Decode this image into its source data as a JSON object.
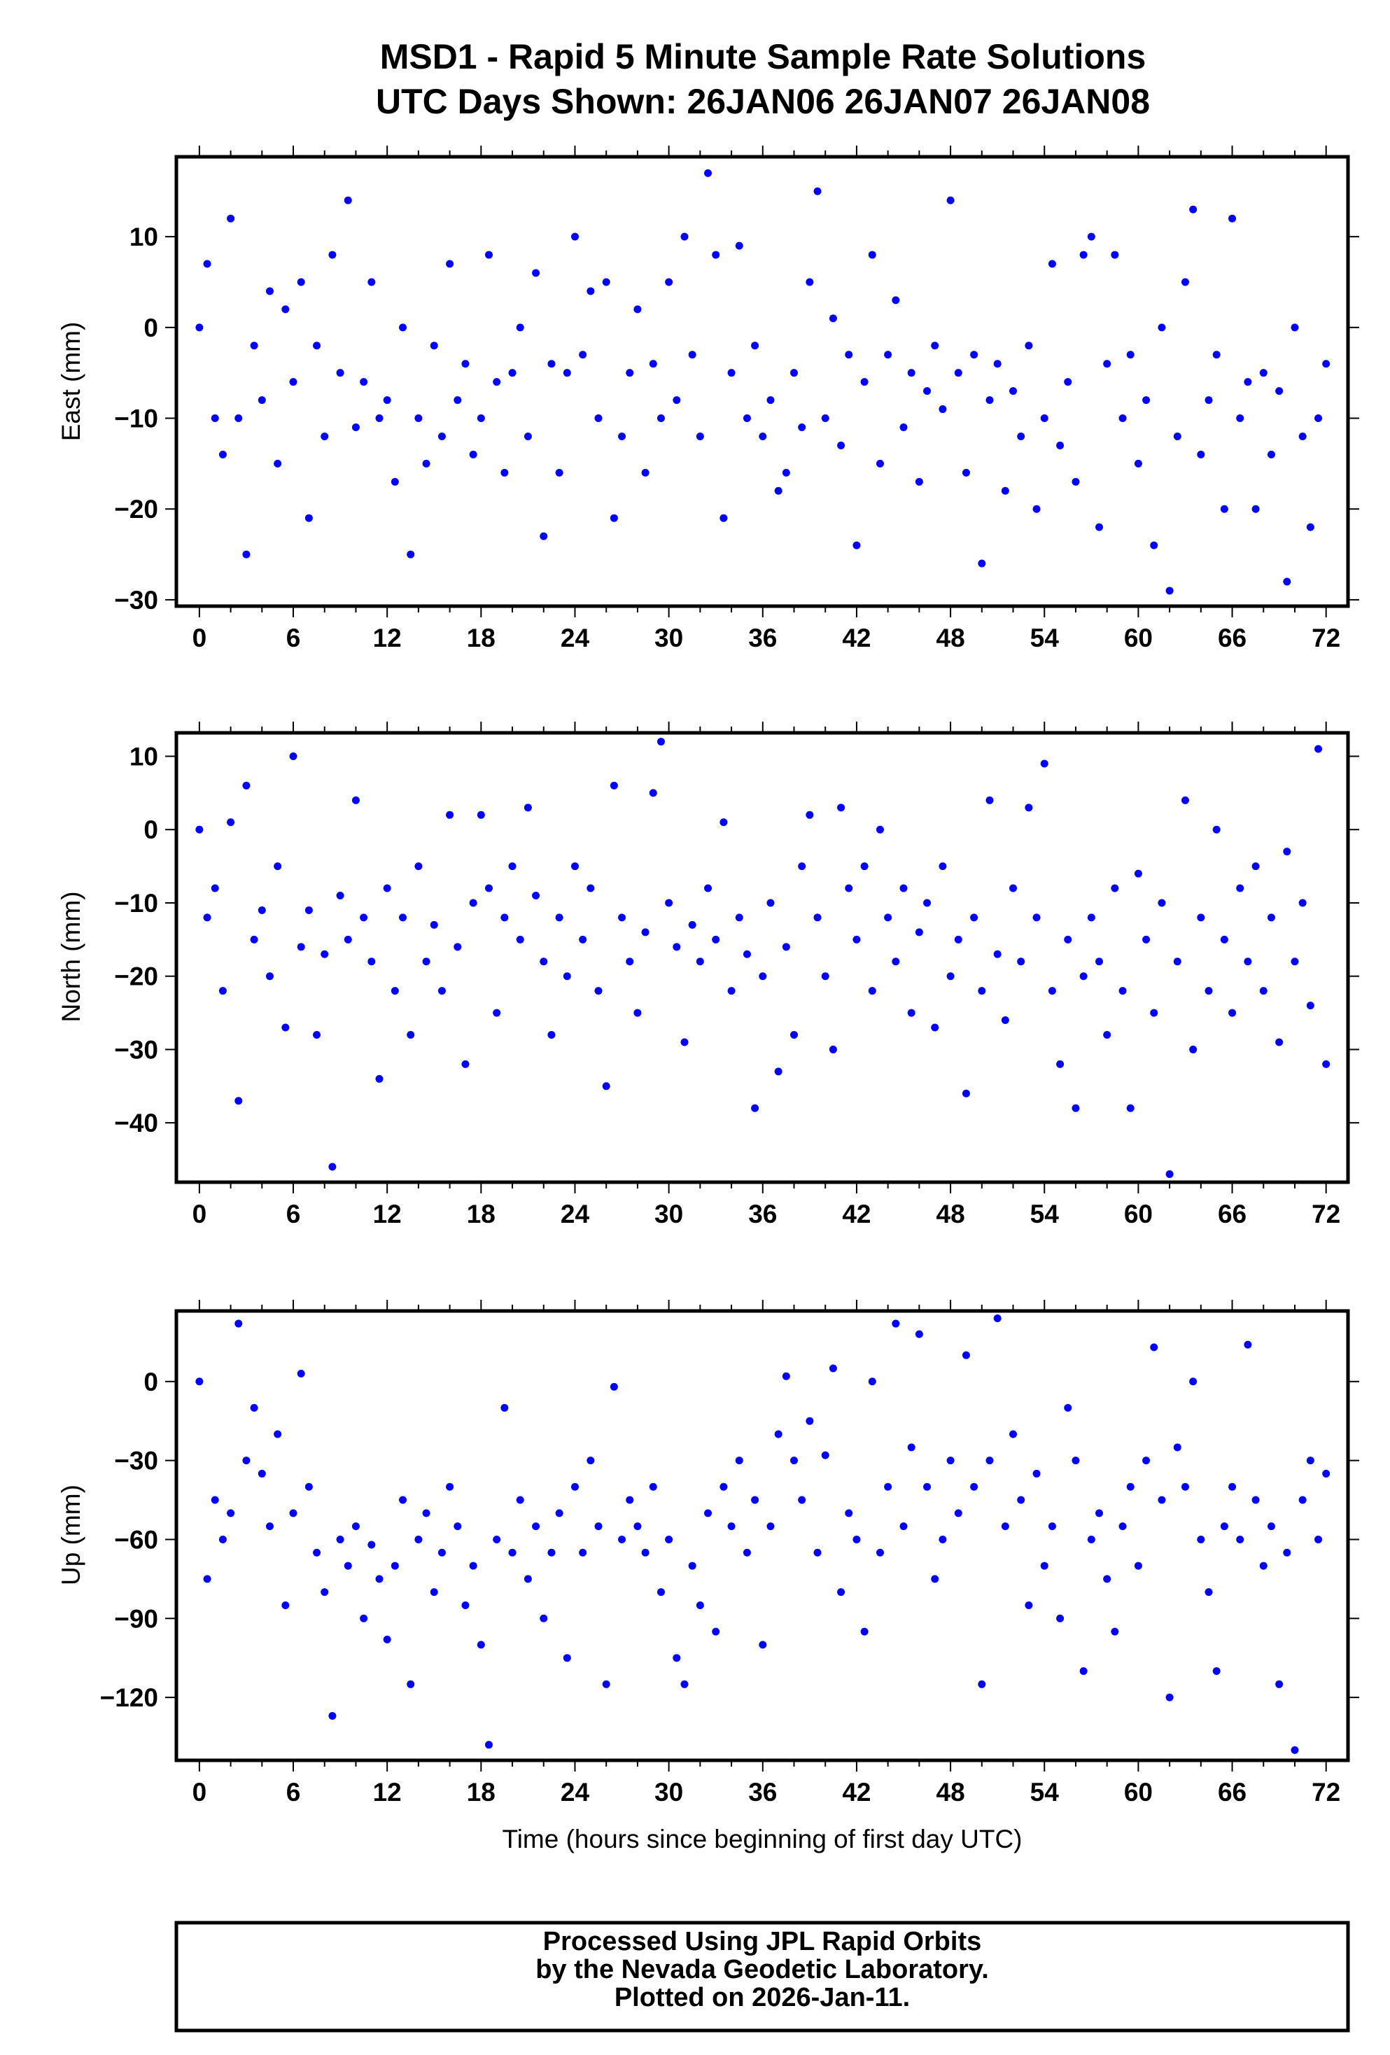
{
  "chart_data": {
    "type": "scatter",
    "title": "MSD1 - Rapid 5 Minute Sample Rate Solutions",
    "subtitle": "UTC Days Shown:  26JAN06 26JAN07 26JAN08",
    "xlabel": "Time (hours since beginning of first day UTC)",
    "xlim": [
      -1.47,
      73.4
    ],
    "xticks": [
      "0",
      "6",
      "12",
      "18",
      "24",
      "30",
      "36",
      "42",
      "48",
      "54",
      "60",
      "66",
      "72"
    ],
    "point_color": "#0000ff",
    "panels": [
      {
        "name": "east",
        "ylabel": "East (mm)",
        "ylim": [
          -30.7,
          18.8
        ],
        "yticks": [
          10,
          0,
          -10,
          -20,
          -30
        ],
        "ytick_labels": [
          "10",
          "0",
          "−10",
          "−20",
          "−30"
        ],
        "x_step": 0.5,
        "values": [
          0,
          7,
          -10,
          -14,
          12,
          -10,
          -25,
          -2,
          -8,
          4,
          -15,
          2,
          -6,
          5,
          -21,
          -2,
          -12,
          8,
          -5,
          14,
          -11,
          -6,
          5,
          -10,
          -8,
          -17,
          0,
          -25,
          -10,
          -15,
          -2,
          -12,
          7,
          -8,
          -4,
          -14,
          -10,
          8,
          -6,
          -16,
          -5,
          0,
          -12,
          6,
          -23,
          -4,
          -16,
          -5,
          10,
          -3,
          4,
          -10,
          5,
          -21,
          -12,
          -5,
          2,
          -16,
          -4,
          -10,
          5,
          -8,
          10,
          -3,
          -12,
          17,
          8,
          -21,
          -5,
          9,
          -10,
          -2,
          -12,
          -8,
          -18,
          -16,
          -5,
          -11,
          5,
          15,
          -10,
          1,
          -13,
          -3,
          -24,
          -6,
          8,
          -15,
          -3,
          3,
          -11,
          -5,
          -17,
          -7,
          -2,
          -9,
          14,
          -5,
          -16,
          -3,
          -26,
          -8,
          -4,
          -18,
          -7,
          -12,
          -2,
          -20,
          -10,
          7,
          -13,
          -6,
          -17,
          8,
          10,
          -22,
          -4,
          8,
          -10,
          -3,
          -15,
          -8,
          -24,
          0,
          -29,
          -12,
          5,
          13,
          -14,
          -8,
          -3,
          -20,
          12,
          -10,
          -6,
          -20,
          -5,
          -14,
          -7,
          -28,
          0,
          -12,
          -22,
          -10,
          -4
        ]
      },
      {
        "name": "north",
        "ylabel": "North (mm)",
        "ylim": [
          -48.1,
          13.2
        ],
        "yticks": [
          10,
          0,
          -10,
          -20,
          -30,
          -40
        ],
        "ytick_labels": [
          "10",
          "0",
          "−10",
          "−20",
          "−30",
          "−40"
        ],
        "x_step": 0.5,
        "values": [
          0,
          -12,
          -8,
          -22,
          1,
          -37,
          6,
          -15,
          -11,
          -20,
          -5,
          -27,
          10,
          -16,
          -11,
          -28,
          -17,
          -46,
          -9,
          -15,
          4,
          -12,
          -18,
          -34,
          -8,
          -22,
          -12,
          -28,
          -5,
          -18,
          -13,
          -22,
          2,
          -16,
          -32,
          -10,
          2,
          -8,
          -25,
          -12,
          -5,
          -15,
          3,
          -9,
          -18,
          -28,
          -12,
          -20,
          -5,
          -15,
          -8,
          -22,
          -35,
          6,
          -12,
          -18,
          -25,
          -14,
          5,
          12,
          -10,
          -16,
          -29,
          -13,
          -18,
          -8,
          -15,
          1,
          -22,
          -12,
          -17,
          -38,
          -20,
          -10,
          -33,
          -16,
          -28,
          -5,
          2,
          -12,
          -20,
          -30,
          3,
          -8,
          -15,
          -5,
          -22,
          0,
          -12,
          -18,
          -8,
          -25,
          -14,
          -10,
          -27,
          -5,
          -20,
          -15,
          -36,
          -12,
          -22,
          4,
          -17,
          -26,
          -8,
          -18,
          3,
          -12,
          9,
          -22,
          -32,
          -15,
          -38,
          -20,
          -12,
          -18,
          -28,
          -8,
          -22,
          -38,
          -6,
          -15,
          -25,
          -10,
          -47,
          -18,
          4,
          -30,
          -12,
          -22,
          0,
          -15,
          -25,
          -8,
          -18,
          -5,
          -22,
          -12,
          -29,
          -3,
          -18,
          -10,
          -24,
          11,
          -32
        ]
      },
      {
        "name": "up",
        "ylabel": "Up (mm)",
        "ylim": [
          -143.9,
          26.8
        ],
        "yticks": [
          0,
          -30,
          -60,
          -90,
          -120
        ],
        "ytick_labels": [
          "0",
          "−30",
          "−60",
          "−90",
          "−120"
        ],
        "x_step": 0.5,
        "values": [
          0,
          -75,
          -45,
          -60,
          -50,
          22,
          -30,
          -10,
          -35,
          -55,
          -20,
          -85,
          -50,
          3,
          -40,
          -65,
          -80,
          -127,
          -60,
          -70,
          -55,
          -90,
          -62,
          -75,
          -98,
          -70,
          -45,
          -115,
          -60,
          -50,
          -80,
          -65,
          -40,
          -55,
          -85,
          -70,
          -100,
          -138,
          -60,
          -10,
          -65,
          -45,
          -75,
          -55,
          -90,
          -65,
          -50,
          -105,
          -40,
          -65,
          -30,
          -55,
          -115,
          -2,
          -60,
          -45,
          -55,
          -65,
          -40,
          -80,
          -60,
          -105,
          -115,
          -70,
          -85,
          -50,
          -95,
          -40,
          -55,
          -30,
          -65,
          -45,
          -100,
          -55,
          -20,
          2,
          -30,
          -45,
          -15,
          -65,
          -28,
          5,
          -80,
          -50,
          -60,
          -95,
          0,
          -65,
          -40,
          22,
          -55,
          -25,
          18,
          -40,
          -75,
          -60,
          -30,
          -50,
          10,
          -40,
          -115,
          -30,
          24,
          -55,
          -20,
          -45,
          -85,
          -35,
          -70,
          -55,
          -90,
          -10,
          -30,
          -110,
          -60,
          -50,
          -75,
          -95,
          -55,
          -40,
          -70,
          -30,
          13,
          -45,
          -120,
          -25,
          -40,
          0,
          -60,
          -80,
          -110,
          -55,
          -40,
          -60,
          14,
          -45,
          -70,
          -55,
          -115,
          -65,
          -140,
          -45,
          -30,
          -60,
          -35
        ]
      }
    ]
  },
  "footer": {
    "lines": [
      "Processed Using JPL Rapid Orbits",
      "by the Nevada Geodetic Laboratory.",
      "Plotted on 2026-Jan-11."
    ]
  }
}
